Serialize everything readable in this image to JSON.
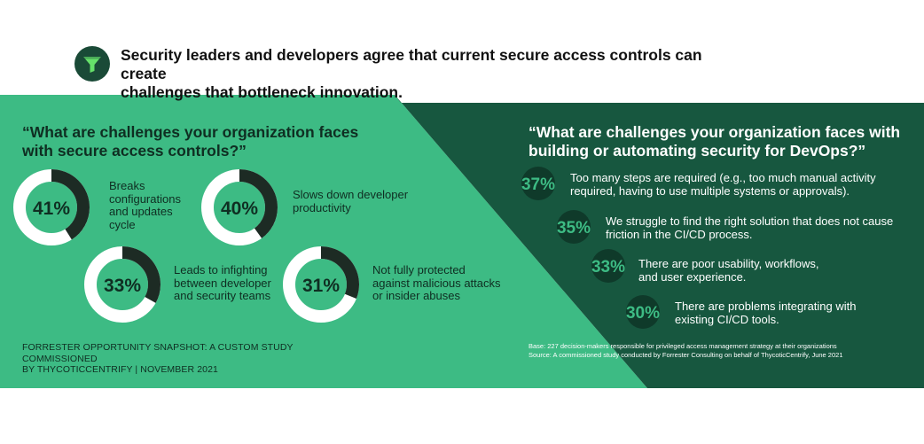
{
  "headline": {
    "line1": "Security leaders and developers agree that current secure access controls can create",
    "line2": "challenges that bottleneck innovation."
  },
  "icon": "funnel-icon",
  "colors": {
    "light_green": "#3dbb84",
    "dark_green": "#17573f",
    "ring_fill": "#1d2b24",
    "ring_track": "#ffffff",
    "badge_bg": "#1a4a37",
    "funnel": "#66e06a"
  },
  "left_panel": {
    "question_line1": "“What are challenges your organization faces",
    "question_line2": "with secure access controls?”",
    "footnote_line1": "FORRESTER OPPORTUNITY SNAPSHOT: A CUSTOM STUDY COMMISSIONED",
    "footnote_line2": "BY THYCOTICCENTRIFY | NOVEMBER 2021"
  },
  "right_panel": {
    "question_line1": "“What are challenges your organization faces with",
    "question_line2": "building or automating security for DevOps?”",
    "base_line": "Base: 227 decision-makers responsible for privileged access management strategy at their organizations",
    "source_line": "Source: A commissioned study conducted by Forrester Consulting on behalf of ThycoticCentrify, June 2021"
  },
  "chart_data": [
    {
      "type": "pie",
      "style": "donut",
      "title": "“What are challenges your organization faces with secure access controls?”",
      "unit": "%",
      "items": [
        {
          "value": 41,
          "label": "41%",
          "text": [
            "Breaks",
            "configurations",
            "and updates",
            "cycle"
          ]
        },
        {
          "value": 40,
          "label": "40%",
          "text": [
            "Slows down developer",
            "productivity"
          ]
        },
        {
          "value": 33,
          "label": "33%",
          "text": [
            "Leads to infighting",
            "between developer",
            "and security teams"
          ]
        },
        {
          "value": 31,
          "label": "31%",
          "text": [
            "Not fully protected",
            "against malicious attacks",
            "or insider abuses"
          ]
        }
      ]
    },
    {
      "type": "table",
      "title": "“What are challenges your organization faces with building or automating security for DevOps?”",
      "unit": "%",
      "rows": [
        {
          "value": 37,
          "label": "37%",
          "text": [
            "Too many steps are required (e.g., too much manual activity",
            "required, having to use multiple systems or approvals)."
          ]
        },
        {
          "value": 35,
          "label": "35%",
          "text": [
            "We struggle to find the right solution that does not cause",
            "friction in the CI/CD process."
          ]
        },
        {
          "value": 33,
          "label": "33%",
          "text": [
            "There are poor usability, workflows,",
            "and user experience."
          ]
        },
        {
          "value": 30,
          "label": "30%",
          "text": [
            "There are problems integrating with",
            "existing CI/CD tools."
          ]
        }
      ]
    }
  ]
}
